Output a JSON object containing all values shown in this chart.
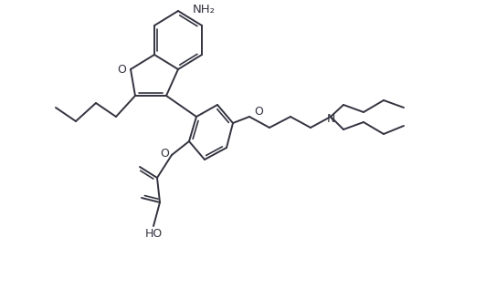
{
  "line_color": "#333340",
  "line_width": 1.4,
  "bg_color": "#ffffff",
  "label_NH2": "NH₂",
  "label_O": "O",
  "label_N": "N",
  "label_HO": "HO",
  "font_size": 9.0,
  "fig_width": 5.43,
  "fig_height": 3.17,
  "dpi": 100
}
